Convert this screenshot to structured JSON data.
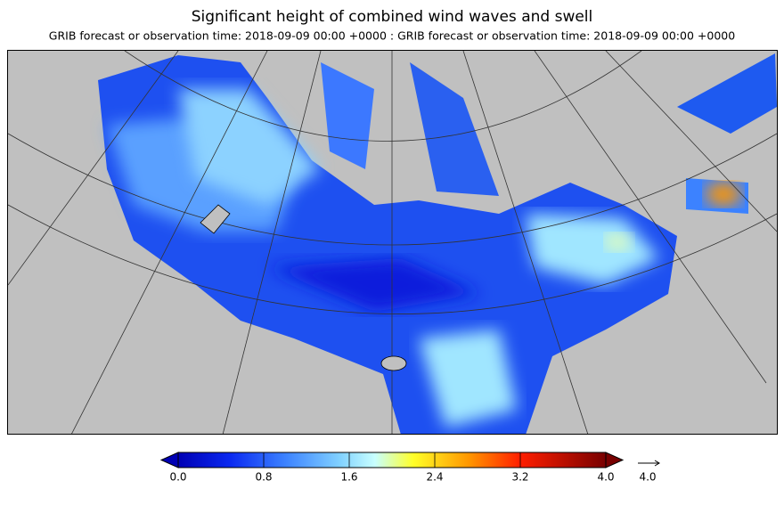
{
  "header": {
    "title": "Significant height of combined wind waves and swell",
    "subtitle": "GRIB forecast or observation time: 2018-09-09 00:00 +0000 : GRIB forecast or observation time: 2018-09-09 00:00 +0000"
  },
  "colorbar": {
    "range": [
      0,
      4
    ],
    "ticks": [
      {
        "value": 0,
        "label": "0.0"
      },
      {
        "value": 0.8,
        "label": "0.8"
      },
      {
        "value": 1.6,
        "label": "1.6"
      },
      {
        "value": 2.4,
        "label": "2.4"
      },
      {
        "value": 3.2,
        "label": "3.2"
      },
      {
        "value": 4,
        "label": "4.0"
      }
    ]
  },
  "vector_legend": {
    "value": 4,
    "label": "4.0"
  }
}
